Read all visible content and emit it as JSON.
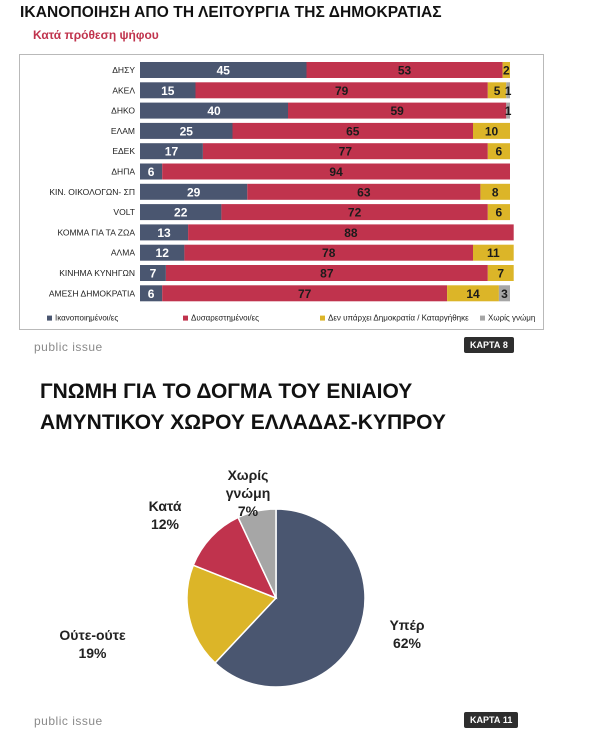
{
  "top": {
    "title": "ΙΚΑΝΟΠΟΙΗΣΗ ΑΠΟ ΤΗ ΛΕΙΤΟΥΡΓΙΑ ΤΗΣ ΔΗΜΟΚΡΑΤΙΑΣ",
    "subtitle": "Κατά πρόθεση ψήφου",
    "brand": "public issue",
    "map_label": "ΚΑΡΤΑ 8"
  },
  "bottom": {
    "title_line1": "ΓΝΩΜΗ ΓΙΑ ΤΟ ΔΟΓΜΑ ΤΟΥ ΕΝΙΑΙΟΥ",
    "title_line2": "ΑΜΥΝΤΙΚΟΥ ΧΩΡΟΥ ΕΛΛΑΔΑΣ-ΚΥΠΡΟΥ",
    "brand": "public issue",
    "map_label": "ΚΑΡΤΑ 11"
  },
  "colors": {
    "satisfied": "#4a5670",
    "dissatisfied": "#c0334d",
    "no_democracy": "#dcb528",
    "no_opinion": "#a6a6a6"
  },
  "chart_data": [
    {
      "type": "bar",
      "orientation": "horizontal",
      "stacked": true,
      "title": "ΙΚΑΝΟΠΟΙΗΣΗ ΑΠΟ ΤΗ ΛΕΙΤΟΥΡΓΙΑ ΤΗΣ ΔΗΜΟΚΡΑΤΙΑΣ",
      "subtitle": "Κατά πρόθεση ψήφου",
      "xlim": [
        0,
        100
      ],
      "grid": false,
      "legend_position": "bottom",
      "categories": [
        "ΔΗΣΥ",
        "ΑΚΕΛ",
        "ΔΗΚΟ",
        "ΕΛΑΜ",
        "ΕΔΕΚ",
        "ΔΗΠΑ",
        "ΚΙΝ. ΟΙΚΟΛΟΓΩΝ- ΣΠ",
        "VOLT",
        "ΚΟΜΜΑ ΓΙΑ ΤΑ ΖΩΑ",
        "ΑΛΜΑ",
        "ΚΙΝΗΜΑ ΚΥΝΗΓΩΝ",
        "ΑΜΕΣΗ ΔΗΜΟΚΡΑΤΙΑ"
      ],
      "series": [
        {
          "name": "Ικανοποιημένοι/ες",
          "color": "#4a5670",
          "values": [
            45,
            15,
            40,
            25,
            17,
            6,
            29,
            22,
            13,
            12,
            7,
            6
          ]
        },
        {
          "name": "Δυσαρεστημένοι/ες",
          "color": "#c0334d",
          "values": [
            53,
            79,
            59,
            65,
            77,
            94,
            63,
            72,
            88,
            78,
            87,
            77
          ]
        },
        {
          "name": "Δεν υπάρχει Δημοκρατία / Καταργήθηκε",
          "color": "#dcb528",
          "values": [
            2,
            5,
            0,
            10,
            6,
            0,
            8,
            6,
            0,
            11,
            7,
            14
          ]
        },
        {
          "name": "Χωρίς γνώμη",
          "color": "#a6a6a6",
          "values": [
            0,
            1,
            1,
            0,
            0,
            0,
            0,
            0,
            0,
            0,
            0,
            3
          ]
        }
      ]
    },
    {
      "type": "pie",
      "title": "ΓΝΩΜΗ ΓΙΑ ΤΟ ΔΟΓΜΑ ΤΟΥ ΕΝΙΑΙΟΥ ΑΜΥΝΤΙΚΟΥ ΧΩΡΟΥ ΕΛΛΑΔΑΣ-ΚΥΠΡΟΥ",
      "slices": [
        {
          "label": "Υπέρ",
          "value": 62,
          "display": "62%",
          "color": "#4a5670"
        },
        {
          "label": "Ούτε-ούτε",
          "value": 19,
          "display": "19%",
          "color": "#dcb528"
        },
        {
          "label": "Κατά",
          "value": 12,
          "display": "12%",
          "color": "#c0334d"
        },
        {
          "label": "Χωρίς γνώμη",
          "value": 7,
          "display": "7%",
          "color": "#a6a6a6"
        }
      ]
    }
  ]
}
